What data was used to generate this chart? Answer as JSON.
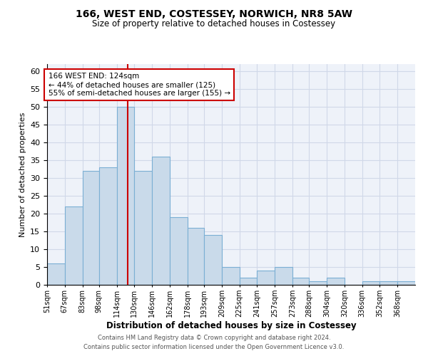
{
  "title1": "166, WEST END, COSTESSEY, NORWICH, NR8 5AW",
  "title2": "Size of property relative to detached houses in Costessey",
  "xlabel": "Distribution of detached houses by size in Costessey",
  "ylabel": "Number of detached properties",
  "bins": [
    "51sqm",
    "67sqm",
    "83sqm",
    "98sqm",
    "114sqm",
    "130sqm",
    "146sqm",
    "162sqm",
    "178sqm",
    "193sqm",
    "209sqm",
    "225sqm",
    "241sqm",
    "257sqm",
    "273sqm",
    "288sqm",
    "304sqm",
    "320sqm",
    "336sqm",
    "352sqm",
    "368sqm"
  ],
  "bin_edges": [
    51,
    67,
    83,
    98,
    114,
    130,
    146,
    162,
    178,
    193,
    209,
    225,
    241,
    257,
    273,
    288,
    304,
    320,
    336,
    352,
    368,
    384
  ],
  "values": [
    6,
    22,
    32,
    33,
    50,
    32,
    36,
    19,
    16,
    14,
    5,
    2,
    4,
    5,
    2,
    1,
    2,
    0,
    1,
    1,
    1
  ],
  "bar_color": "#c9daea",
  "bar_edge_color": "#7bafd4",
  "red_line_x": 124,
  "annotation_text": "166 WEST END: 124sqm\n← 44% of detached houses are smaller (125)\n55% of semi-detached houses are larger (155) →",
  "annotation_box_color": "#ffffff",
  "annotation_box_edge": "#cc0000",
  "grid_color": "#d0d8e8",
  "background_color": "#eef2f9",
  "ylim": [
    0,
    62
  ],
  "yticks": [
    0,
    5,
    10,
    15,
    20,
    25,
    30,
    35,
    40,
    45,
    50,
    55,
    60
  ],
  "footer1": "Contains HM Land Registry data © Crown copyright and database right 2024.",
  "footer2": "Contains public sector information licensed under the Open Government Licence v3.0."
}
